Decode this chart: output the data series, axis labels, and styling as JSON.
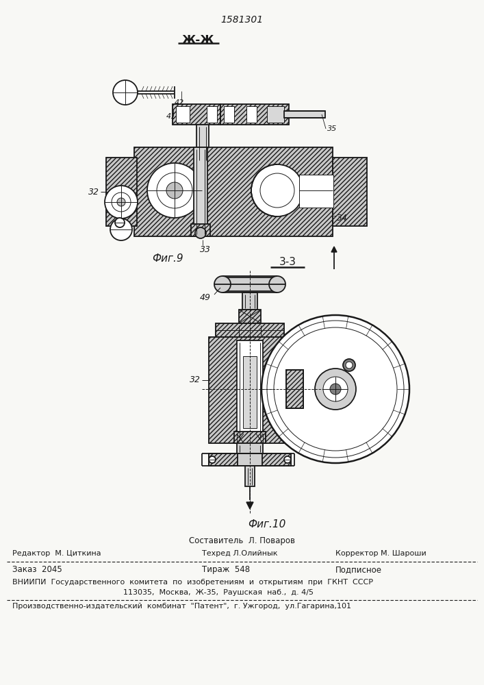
{
  "page_number": "1581301",
  "fig9_label": "Фиг.9",
  "fig10_label": "Фиг.10",
  "section_zz": "Ж-Ж",
  "section_33": "3-3",
  "footer_sestavitel": "Составитель  Л. Поваров",
  "footer_redaktor": "Редактор  М. Циткина",
  "footer_tehred": "Техред Л.Олийнык",
  "footer_korrektor": "Корректор М. Шароши",
  "footer_zakaz": "Заказ  2045",
  "footer_tirazh": "Тираж  548",
  "footer_podpisnoe": "Подписное",
  "footer_vnipi": "ВНИИПИ  Государственного  комитета  по  изобретениям  и  открытиям  при  ГКНТ  СССР",
  "footer_address": "113035,  Москва,  Ж-35,  Раушская  наб.,  д. 4/5",
  "footer_kombinat": "Производственно-издательский  комбинат  \"Патент\",  г. Ужгород,  ул.Гагарина,101",
  "bg_color": "#f8f8f5",
  "line_color": "#1a1a1a"
}
